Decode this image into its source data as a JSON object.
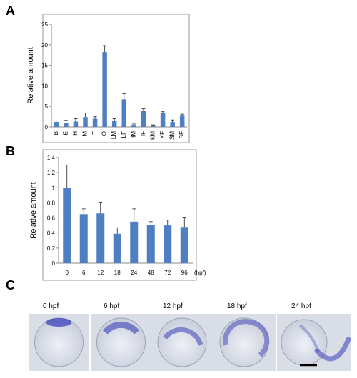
{
  "panels": {
    "a": "A",
    "b": "B",
    "c": "C"
  },
  "chart_data": [
    {
      "type": "bar",
      "panel": "A",
      "ylabel": "Relative amount",
      "xlabel": "",
      "ylim": [
        0,
        25
      ],
      "yticks": [
        "0",
        "5",
        "10",
        "15",
        "20",
        "25"
      ],
      "categories": [
        "B",
        "E",
        "H",
        "M",
        "T",
        "O",
        "LM",
        "LF",
        "IM",
        "IF",
        "KM",
        "KF",
        "SM",
        "SF"
      ],
      "values": [
        1.2,
        1.0,
        1.3,
        2.4,
        2.0,
        18.2,
        1.4,
        6.7,
        0.5,
        3.9,
        0.4,
        3.4,
        1.2,
        2.9
      ],
      "errors": [
        0.3,
        0.6,
        0.7,
        1.0,
        0.5,
        1.6,
        0.6,
        1.4,
        0.2,
        0.5,
        0.1,
        0.3,
        0.5,
        0.2
      ],
      "grid": false,
      "bar_color": "#4f7fc2"
    },
    {
      "type": "bar",
      "panel": "B",
      "ylabel": "Relative amount",
      "xlabel": "(hpf)",
      "ylim": [
        0,
        1.4
      ],
      "yticks": [
        "0",
        "0.2",
        "0.4",
        "0.6",
        "0.8",
        "1",
        "1.2",
        "1.4"
      ],
      "categories": [
        "0",
        "6",
        "12",
        "18",
        "24",
        "48",
        "72",
        "96"
      ],
      "values": [
        1.0,
        0.65,
        0.66,
        0.39,
        0.55,
        0.51,
        0.5,
        0.48
      ],
      "errors": [
        0.3,
        0.07,
        0.15,
        0.08,
        0.17,
        0.04,
        0.07,
        0.13
      ],
      "grid": false,
      "bar_color": "#4f7fc2"
    }
  ],
  "embryos": {
    "labels": [
      "0 hpf",
      "6 hpf",
      "12 hpf",
      "18 hpf",
      "24 hpf"
    ],
    "stain_color": "#3b3fb8",
    "background_color": "#d9dee6"
  }
}
